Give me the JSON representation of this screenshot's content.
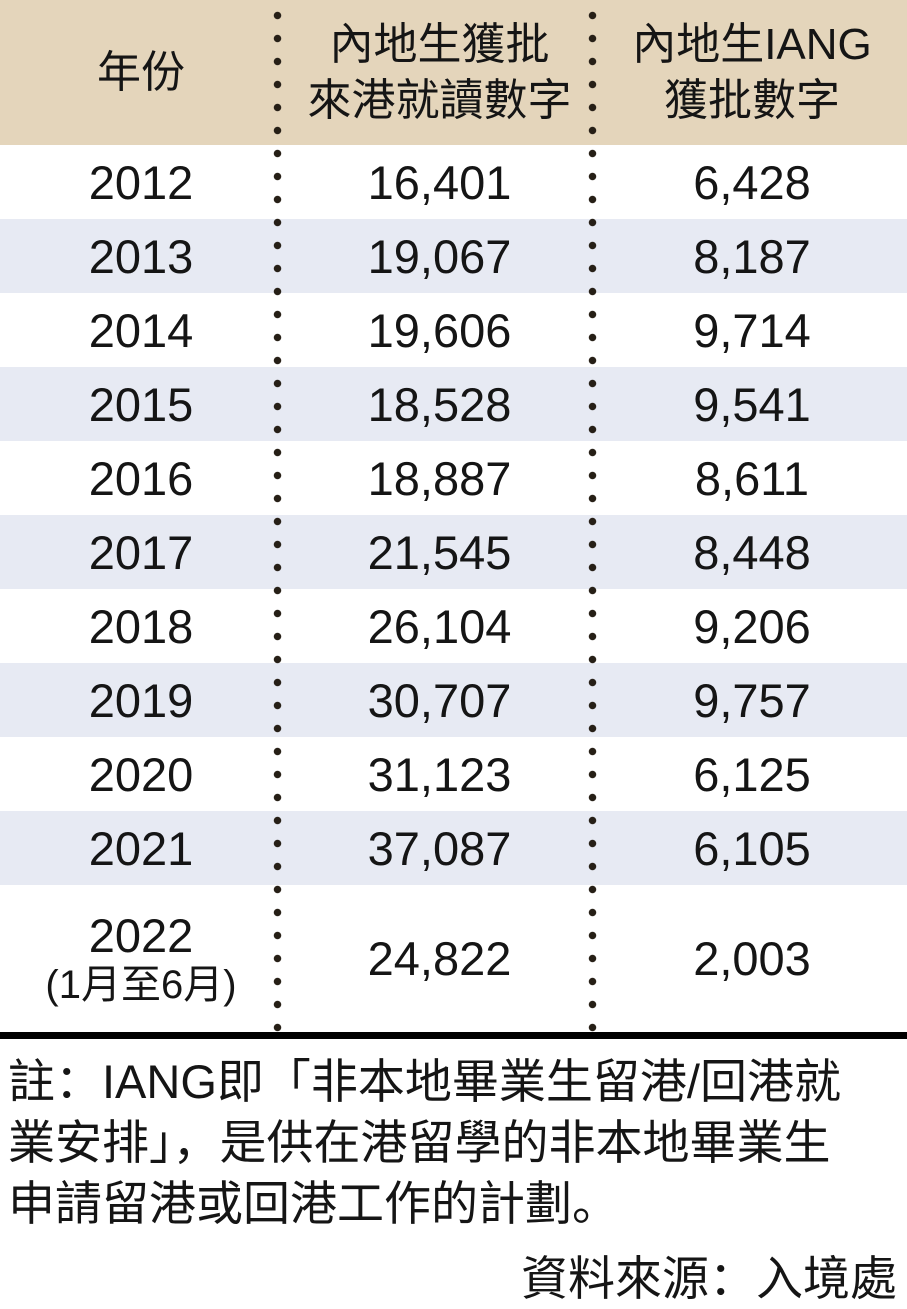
{
  "colors": {
    "header_bg": "#e4d5bb",
    "stripe_bg": "#e7eaf3",
    "dot_color": "#261f16",
    "text_color": "#151515",
    "rule_color": "#000000"
  },
  "table": {
    "header": {
      "year": "年份",
      "study_line1": "內地生獲批",
      "study_line2": "來港就讀數字",
      "iang_line1": "內地生IANG",
      "iang_line2": "獲批數字"
    },
    "rows": [
      {
        "year": "2012",
        "study": "16,401",
        "iang": "6,428"
      },
      {
        "year": "2013",
        "study": "19,067",
        "iang": "8,187"
      },
      {
        "year": "2014",
        "study": "19,606",
        "iang": "9,714"
      },
      {
        "year": "2015",
        "study": "18,528",
        "iang": "9,541"
      },
      {
        "year": "2016",
        "study": "18,887",
        "iang": "8,611"
      },
      {
        "year": "2017",
        "study": "21,545",
        "iang": "8,448"
      },
      {
        "year": "2018",
        "study": "26,104",
        "iang": "9,206"
      },
      {
        "year": "2019",
        "study": "30,707",
        "iang": "9,757"
      },
      {
        "year": "2020",
        "study": "31,123",
        "iang": "6,125"
      },
      {
        "year": "2021",
        "study": "37,087",
        "iang": "6,105"
      },
      {
        "year": "2022",
        "year_note": "(1月至6月)",
        "study": "24,822",
        "iang": "2,003"
      }
    ]
  },
  "footnote": {
    "lines": [
      "註：IANG即「非本地畢業生留港/回港就",
      "業安排」，是供在港留學的非本地畢業生",
      "申請留港或回港工作的計劃。"
    ]
  },
  "source": "資料來源：入境處",
  "chart_data": {
    "type": "table",
    "columns": [
      "年份",
      "內地生獲批來港就讀數字",
      "內地生IANG獲批數字"
    ],
    "rows": [
      [
        "2012",
        16401,
        6428
      ],
      [
        "2013",
        19067,
        8187
      ],
      [
        "2014",
        19606,
        9714
      ],
      [
        "2015",
        18528,
        9541
      ],
      [
        "2016",
        18887,
        8611
      ],
      [
        "2017",
        21545,
        8448
      ],
      [
        "2018",
        26104,
        9206
      ],
      [
        "2019",
        30707,
        9757
      ],
      [
        "2020",
        31123,
        6125
      ],
      [
        "2021",
        37087,
        6105
      ],
      [
        "2022 (1月至6月)",
        24822,
        2003
      ]
    ],
    "note": "註：IANG即「非本地畢業生留港/回港就業安排」，是供在港留學的非本地畢業生申請留港或回港工作的計劃。",
    "source": "資料來源：入境處"
  }
}
